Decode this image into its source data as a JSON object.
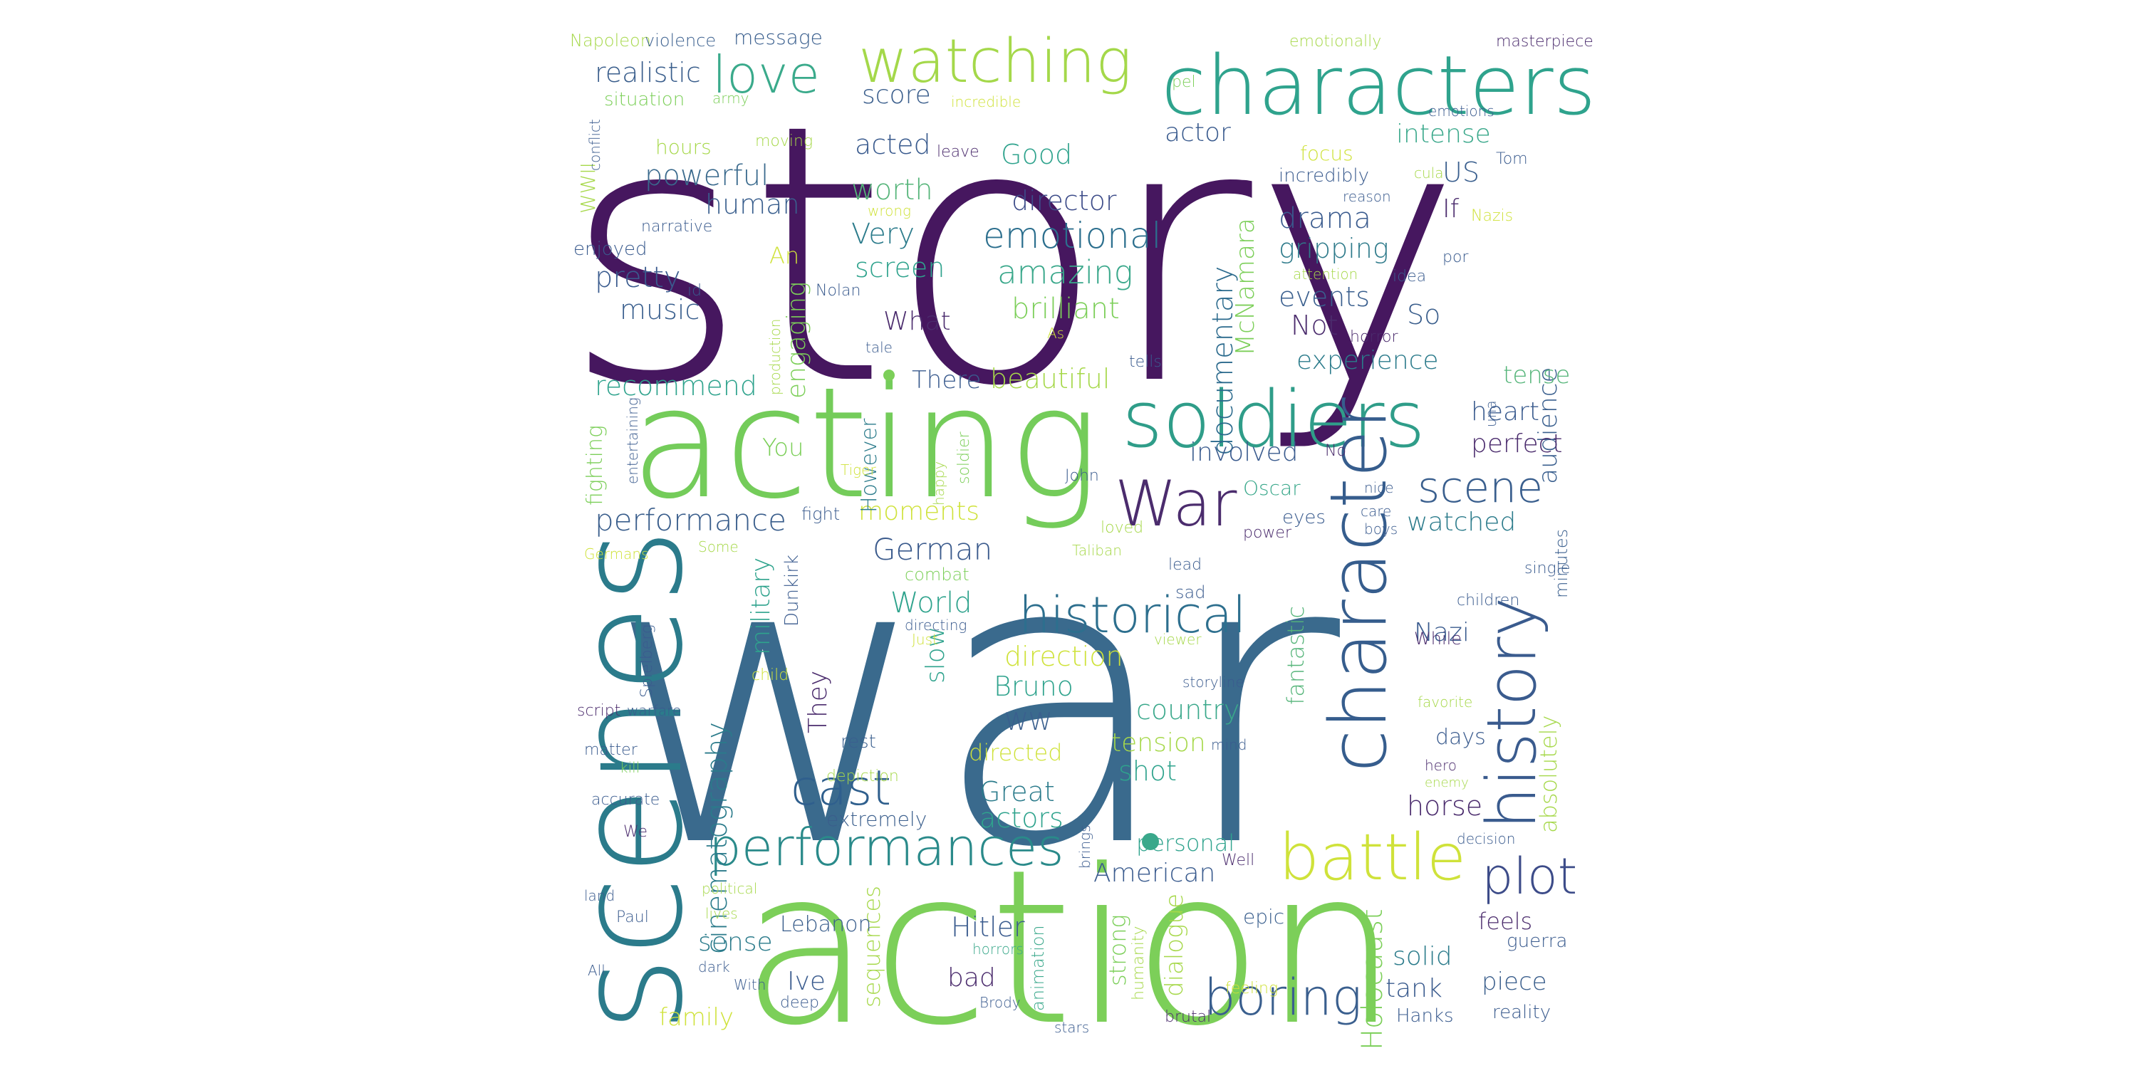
{
  "wordcloud": {
    "words": [
      {
        "text": "story",
        "color": "#46175f"
      },
      {
        "text": "war",
        "color": "#3a6a8d"
      },
      {
        "text": "action",
        "color": "#7ccf59"
      },
      {
        "text": "acting",
        "color": "#74cc5a"
      },
      {
        "text": "scenes",
        "color": "#2b7b8b"
      },
      {
        "text": "characters",
        "color": "#2fa38d"
      },
      {
        "text": "soldiers",
        "color": "#2f9d89"
      },
      {
        "text": "watching",
        "color": "#a4d84a"
      },
      {
        "text": "character",
        "color": "#365d8d"
      },
      {
        "text": "history",
        "color": "#3a5b8e"
      },
      {
        "text": "War",
        "color": "#4b2c6d"
      },
      {
        "text": "historical",
        "color": "#2d6f8e"
      },
      {
        "text": "performances",
        "color": "#2a8a8a"
      },
      {
        "text": "battle",
        "color": "#cfe23a"
      },
      {
        "text": "cast",
        "color": "#2f5f8d"
      },
      {
        "text": "plot",
        "color": "#3d4c89"
      },
      {
        "text": "love",
        "color": "#3aaa8b"
      },
      {
        "text": "scene",
        "color": "#3a5f8e"
      },
      {
        "text": "boring",
        "color": "#3a5f8e"
      },
      {
        "text": "emotional",
        "color": "#2c6f8e"
      },
      {
        "text": "amazing",
        "color": "#3aa88b"
      },
      {
        "text": "performance",
        "color": "#3a5e8c"
      },
      {
        "text": "German",
        "color": "#3a5a8c"
      },
      {
        "text": "cinematography",
        "color": "#2b7b8b"
      },
      {
        "text": "documentary",
        "color": "#2b6a8d"
      },
      {
        "text": "Holocaust",
        "color": "#7ccf59"
      },
      {
        "text": "realistic",
        "color": "#3a5e8c"
      },
      {
        "text": "powerful",
        "color": "#3a6a8d"
      },
      {
        "text": "worth",
        "color": "#56b57a"
      },
      {
        "text": "director",
        "color": "#3d4c89"
      },
      {
        "text": "brilliant",
        "color": "#7ccf59"
      },
      {
        "text": "beautiful",
        "color": "#a6d84a"
      },
      {
        "text": "recommend",
        "color": "#2fa38d"
      },
      {
        "text": "moments",
        "color": "#cfe23a"
      },
      {
        "text": "direction",
        "color": "#cfe23a"
      },
      {
        "text": "country",
        "color": "#3aa88b"
      },
      {
        "text": "tension",
        "color": "#a6d84a"
      },
      {
        "text": "drama",
        "color": "#3a5b8e"
      },
      {
        "text": "gripping",
        "color": "#2f7b8b"
      },
      {
        "text": "events",
        "color": "#3a5f8e"
      },
      {
        "text": "experience",
        "color": "#2b7b8b"
      },
      {
        "text": "audience",
        "color": "#3a5f8e"
      },
      {
        "text": "intense",
        "color": "#3aa88b"
      },
      {
        "text": "music",
        "color": "#3a5f8e"
      },
      {
        "text": "pretty",
        "color": "#3a5b8e"
      },
      {
        "text": "human",
        "color": "#3a5f8e"
      },
      {
        "text": "Very",
        "color": "#2b7b8b"
      },
      {
        "text": "screen",
        "color": "#2fa38d"
      },
      {
        "text": "engaging",
        "color": "#7ccf59"
      },
      {
        "text": "What",
        "color": "#4b2c6d"
      },
      {
        "text": "score",
        "color": "#3a5e8c"
      },
      {
        "text": "acted",
        "color": "#3a5b8e"
      },
      {
        "text": "Good",
        "color": "#2fa38d"
      },
      {
        "text": "actor",
        "color": "#3a5b8e"
      },
      {
        "text": "McNamara",
        "color": "#7ccf59"
      },
      {
        "text": "US",
        "color": "#3a5f8e"
      },
      {
        "text": "If",
        "color": "#4b2c6d"
      },
      {
        "text": "So",
        "color": "#3a5e8c"
      },
      {
        "text": "Not",
        "color": "#4b2c6d"
      },
      {
        "text": "tense",
        "color": "#56b57a"
      },
      {
        "text": "heart",
        "color": "#3a5b8e"
      },
      {
        "text": "perfect",
        "color": "#4b2c6d"
      },
      {
        "text": "involved",
        "color": "#3a5b8e"
      },
      {
        "text": "watched",
        "color": "#2b7b8b"
      },
      {
        "text": "fantastic",
        "color": "#56b57a"
      },
      {
        "text": "military",
        "color": "#2fa38d"
      },
      {
        "text": "World",
        "color": "#2fa38d"
      },
      {
        "text": "slow",
        "color": "#2fa38d"
      },
      {
        "text": "They",
        "color": "#4b2c6d"
      },
      {
        "text": "Bruno",
        "color": "#2fa38d"
      },
      {
        "text": "WW",
        "color": "#3a5f8e"
      },
      {
        "text": "directed",
        "color": "#cfe23a"
      },
      {
        "text": "shot",
        "color": "#2fa38d"
      },
      {
        "text": "Great",
        "color": "#2b7b8b"
      },
      {
        "text": "actors",
        "color": "#2fa38d"
      },
      {
        "text": "Nazi",
        "color": "#3a5b8e"
      },
      {
        "text": "absolutely",
        "color": "#a6d84a"
      },
      {
        "text": "horse",
        "color": "#4b2c6d"
      },
      {
        "text": "days",
        "color": "#3a5b8e"
      },
      {
        "text": "American",
        "color": "#3a5b8e"
      },
      {
        "text": "personal",
        "color": "#2fa38d"
      },
      {
        "text": "dialogue",
        "color": "#a6d84a"
      },
      {
        "text": "strong",
        "color": "#7ccf59"
      },
      {
        "text": "feels",
        "color": "#4b2c6d"
      },
      {
        "text": "solid",
        "color": "#2b7b8b"
      },
      {
        "text": "tank",
        "color": "#3a5b8e"
      },
      {
        "text": "piece",
        "color": "#3a5e8c"
      },
      {
        "text": "Hitler",
        "color": "#3a5b8e"
      },
      {
        "text": "bad",
        "color": "#4b2c6d"
      },
      {
        "text": "sense",
        "color": "#2b7b8b"
      },
      {
        "text": "Ive",
        "color": "#3a5b8e"
      },
      {
        "text": "sequences",
        "color": "#a6d84a"
      },
      {
        "text": "family",
        "color": "#cfe23a"
      },
      {
        "text": "Lebanon",
        "color": "#3a5e8c"
      },
      {
        "text": "epic",
        "color": "#3a5f8e"
      },
      {
        "text": "You",
        "color": "#7ccf59"
      },
      {
        "text": "There",
        "color": "#3a5b8e"
      },
      {
        "text": "However",
        "color": "#2b7b8b"
      },
      {
        "text": "fighting",
        "color": "#7ccf59"
      },
      {
        "text": "WWII",
        "color": "#a6d84a"
      },
      {
        "text": "An",
        "color": "#cfe23a"
      },
      {
        "text": "extremely",
        "color": "#3a5e8c"
      },
      {
        "text": "rest",
        "color": "#3a5f8e"
      },
      {
        "text": "combat",
        "color": "#7ccf59"
      },
      {
        "text": "fight",
        "color": "#3a5b8e"
      },
      {
        "text": "Dunkirk",
        "color": "#3a5b8e"
      },
      {
        "text": "sad",
        "color": "#3a5b8e"
      },
      {
        "text": "focus",
        "color": "#cfe23a"
      },
      {
        "text": "incredibly",
        "color": "#3a5b8e"
      },
      {
        "text": "hours",
        "color": "#a6d84a"
      },
      {
        "text": "situation",
        "color": "#7ccf59"
      },
      {
        "text": "message",
        "color": "#3a5f8e"
      },
      {
        "text": "enjoyed",
        "color": "#3a5b8e"
      },
      {
        "text": "Oscar",
        "color": "#3aa88b"
      },
      {
        "text": "eyes",
        "color": "#3a5b8e"
      },
      {
        "text": "minutes",
        "color": "#3a5f8e"
      },
      {
        "text": "Hanks",
        "color": "#3a5b8e"
      },
      {
        "text": "reality",
        "color": "#3a5b8e"
      },
      {
        "text": "guerra",
        "color": "#3a5b8e"
      },
      {
        "text": "animation",
        "color": "#3aa88b"
      },
      {
        "text": "humanity",
        "color": "#a6d84a"
      },
      {
        "text": "brutal",
        "color": "#4b2c6d"
      },
      {
        "text": "feeling",
        "color": "#cfe23a"
      },
      {
        "text": "Napoleon",
        "color": "#a6d84a"
      },
      {
        "text": "violence",
        "color": "#3a5f8e"
      },
      {
        "text": "army",
        "color": "#7ccf59"
      },
      {
        "text": "conflict",
        "color": "#3a5b8e"
      },
      {
        "text": "moving",
        "color": "#a6d84a"
      },
      {
        "text": "leave",
        "color": "#4b2c6d"
      },
      {
        "text": "incredible",
        "color": "#cfe23a"
      },
      {
        "text": "emotionally",
        "color": "#a6d84a"
      },
      {
        "text": "masterpiece",
        "color": "#4b2c6d"
      },
      {
        "text": "emotions",
        "color": "#3a5b8e"
      },
      {
        "text": "Tom",
        "color": "#3a5b8e"
      },
      {
        "text": "pel",
        "color": "#7ccf59"
      },
      {
        "text": "cula",
        "color": "#a6d84a"
      },
      {
        "text": "reason",
        "color": "#3a5b8e"
      },
      {
        "text": "Nazis",
        "color": "#cfe23a"
      },
      {
        "text": "por",
        "color": "#3a5b8e"
      },
      {
        "text": "idea",
        "color": "#3a5b8e"
      },
      {
        "text": "attention",
        "color": "#a6d84a"
      },
      {
        "text": "horror",
        "color": "#4b2c6d"
      },
      {
        "text": "narrative",
        "color": "#3a5b8e"
      },
      {
        "text": "wrong",
        "color": "#cfe23a"
      },
      {
        "text": "id",
        "color": "#3a5b8e"
      },
      {
        "text": "Nolan",
        "color": "#3a5b8e"
      },
      {
        "text": "production",
        "color": "#a6d84a"
      },
      {
        "text": "tale",
        "color": "#3a5b8e"
      },
      {
        "text": "As",
        "color": "#cfe23a"
      },
      {
        "text": "tells",
        "color": "#3a5b8e"
      },
      {
        "text": "una",
        "color": "#3a5b8e"
      },
      {
        "text": "No",
        "color": "#4b2c6d"
      },
      {
        "text": "nice",
        "color": "#3a5b8e"
      },
      {
        "text": "care",
        "color": "#3a5b8e"
      },
      {
        "text": "boys",
        "color": "#3a5b8e"
      },
      {
        "text": "power",
        "color": "#4b2c6d"
      },
      {
        "text": "loved",
        "color": "#a6d84a"
      },
      {
        "text": "John",
        "color": "#3a5b8e"
      },
      {
        "text": "happy",
        "color": "#a6d84a"
      },
      {
        "text": "soldier",
        "color": "#7ccf59"
      },
      {
        "text": "Tiger",
        "color": "#cfe23a"
      },
      {
        "text": "entertaining",
        "color": "#3a5b8e"
      },
      {
        "text": "Germans",
        "color": "#cfe23a"
      },
      {
        "text": "Some",
        "color": "#a6d84a"
      },
      {
        "text": "Taliban",
        "color": "#a6d84a"
      },
      {
        "text": "lead",
        "color": "#3a5b8e"
      },
      {
        "text": "single",
        "color": "#3a5b8e"
      },
      {
        "text": "children",
        "color": "#3a5b8e"
      },
      {
        "text": "While",
        "color": "#4b2c6d"
      },
      {
        "text": "directing",
        "color": "#3a5b8e"
      },
      {
        "text": "Just",
        "color": "#cfe23a"
      },
      {
        "text": "viewer",
        "color": "#a6d84a"
      },
      {
        "text": "storyline",
        "color": "#3a5b8e"
      },
      {
        "text": "favorite",
        "color": "#a6d84a"
      },
      {
        "text": "mind",
        "color": "#3a5b8e"
      },
      {
        "text": "hero",
        "color": "#4b2c6d"
      },
      {
        "text": "enemy",
        "color": "#a6d84a"
      },
      {
        "text": "Spielberg",
        "color": "#3a5b8e"
      },
      {
        "text": "child",
        "color": "#cfe23a"
      },
      {
        "text": "script",
        "color": "#4b2c6d"
      },
      {
        "text": "warfare",
        "color": "#3a5b8e"
      },
      {
        "text": "matter",
        "color": "#3a5b8e"
      },
      {
        "text": "kill",
        "color": "#7ccf59"
      },
      {
        "text": "accurate",
        "color": "#3a5b8e"
      },
      {
        "text": "depiction",
        "color": "#a6d84a"
      },
      {
        "text": "We",
        "color": "#4b2c6d"
      },
      {
        "text": "Well",
        "color": "#4b2c6d"
      },
      {
        "text": "brings",
        "color": "#3a5b8e"
      },
      {
        "text": "decision",
        "color": "#3a5b8e"
      },
      {
        "text": "land",
        "color": "#3a5b8e"
      },
      {
        "text": "political",
        "color": "#a6d84a"
      },
      {
        "text": "Paul",
        "color": "#3a5b8e"
      },
      {
        "text": "lives",
        "color": "#a6d84a"
      },
      {
        "text": "All",
        "color": "#3a5b8e"
      },
      {
        "text": "dark",
        "color": "#3a5b8e"
      },
      {
        "text": "With",
        "color": "#3a5b8e"
      },
      {
        "text": "horrors",
        "color": "#3aa88b"
      },
      {
        "text": "deep",
        "color": "#3a5b8e"
      },
      {
        "text": "Brody",
        "color": "#3a5b8e"
      },
      {
        "text": "stars",
        "color": "#3a5b8e"
      }
    ]
  }
}
